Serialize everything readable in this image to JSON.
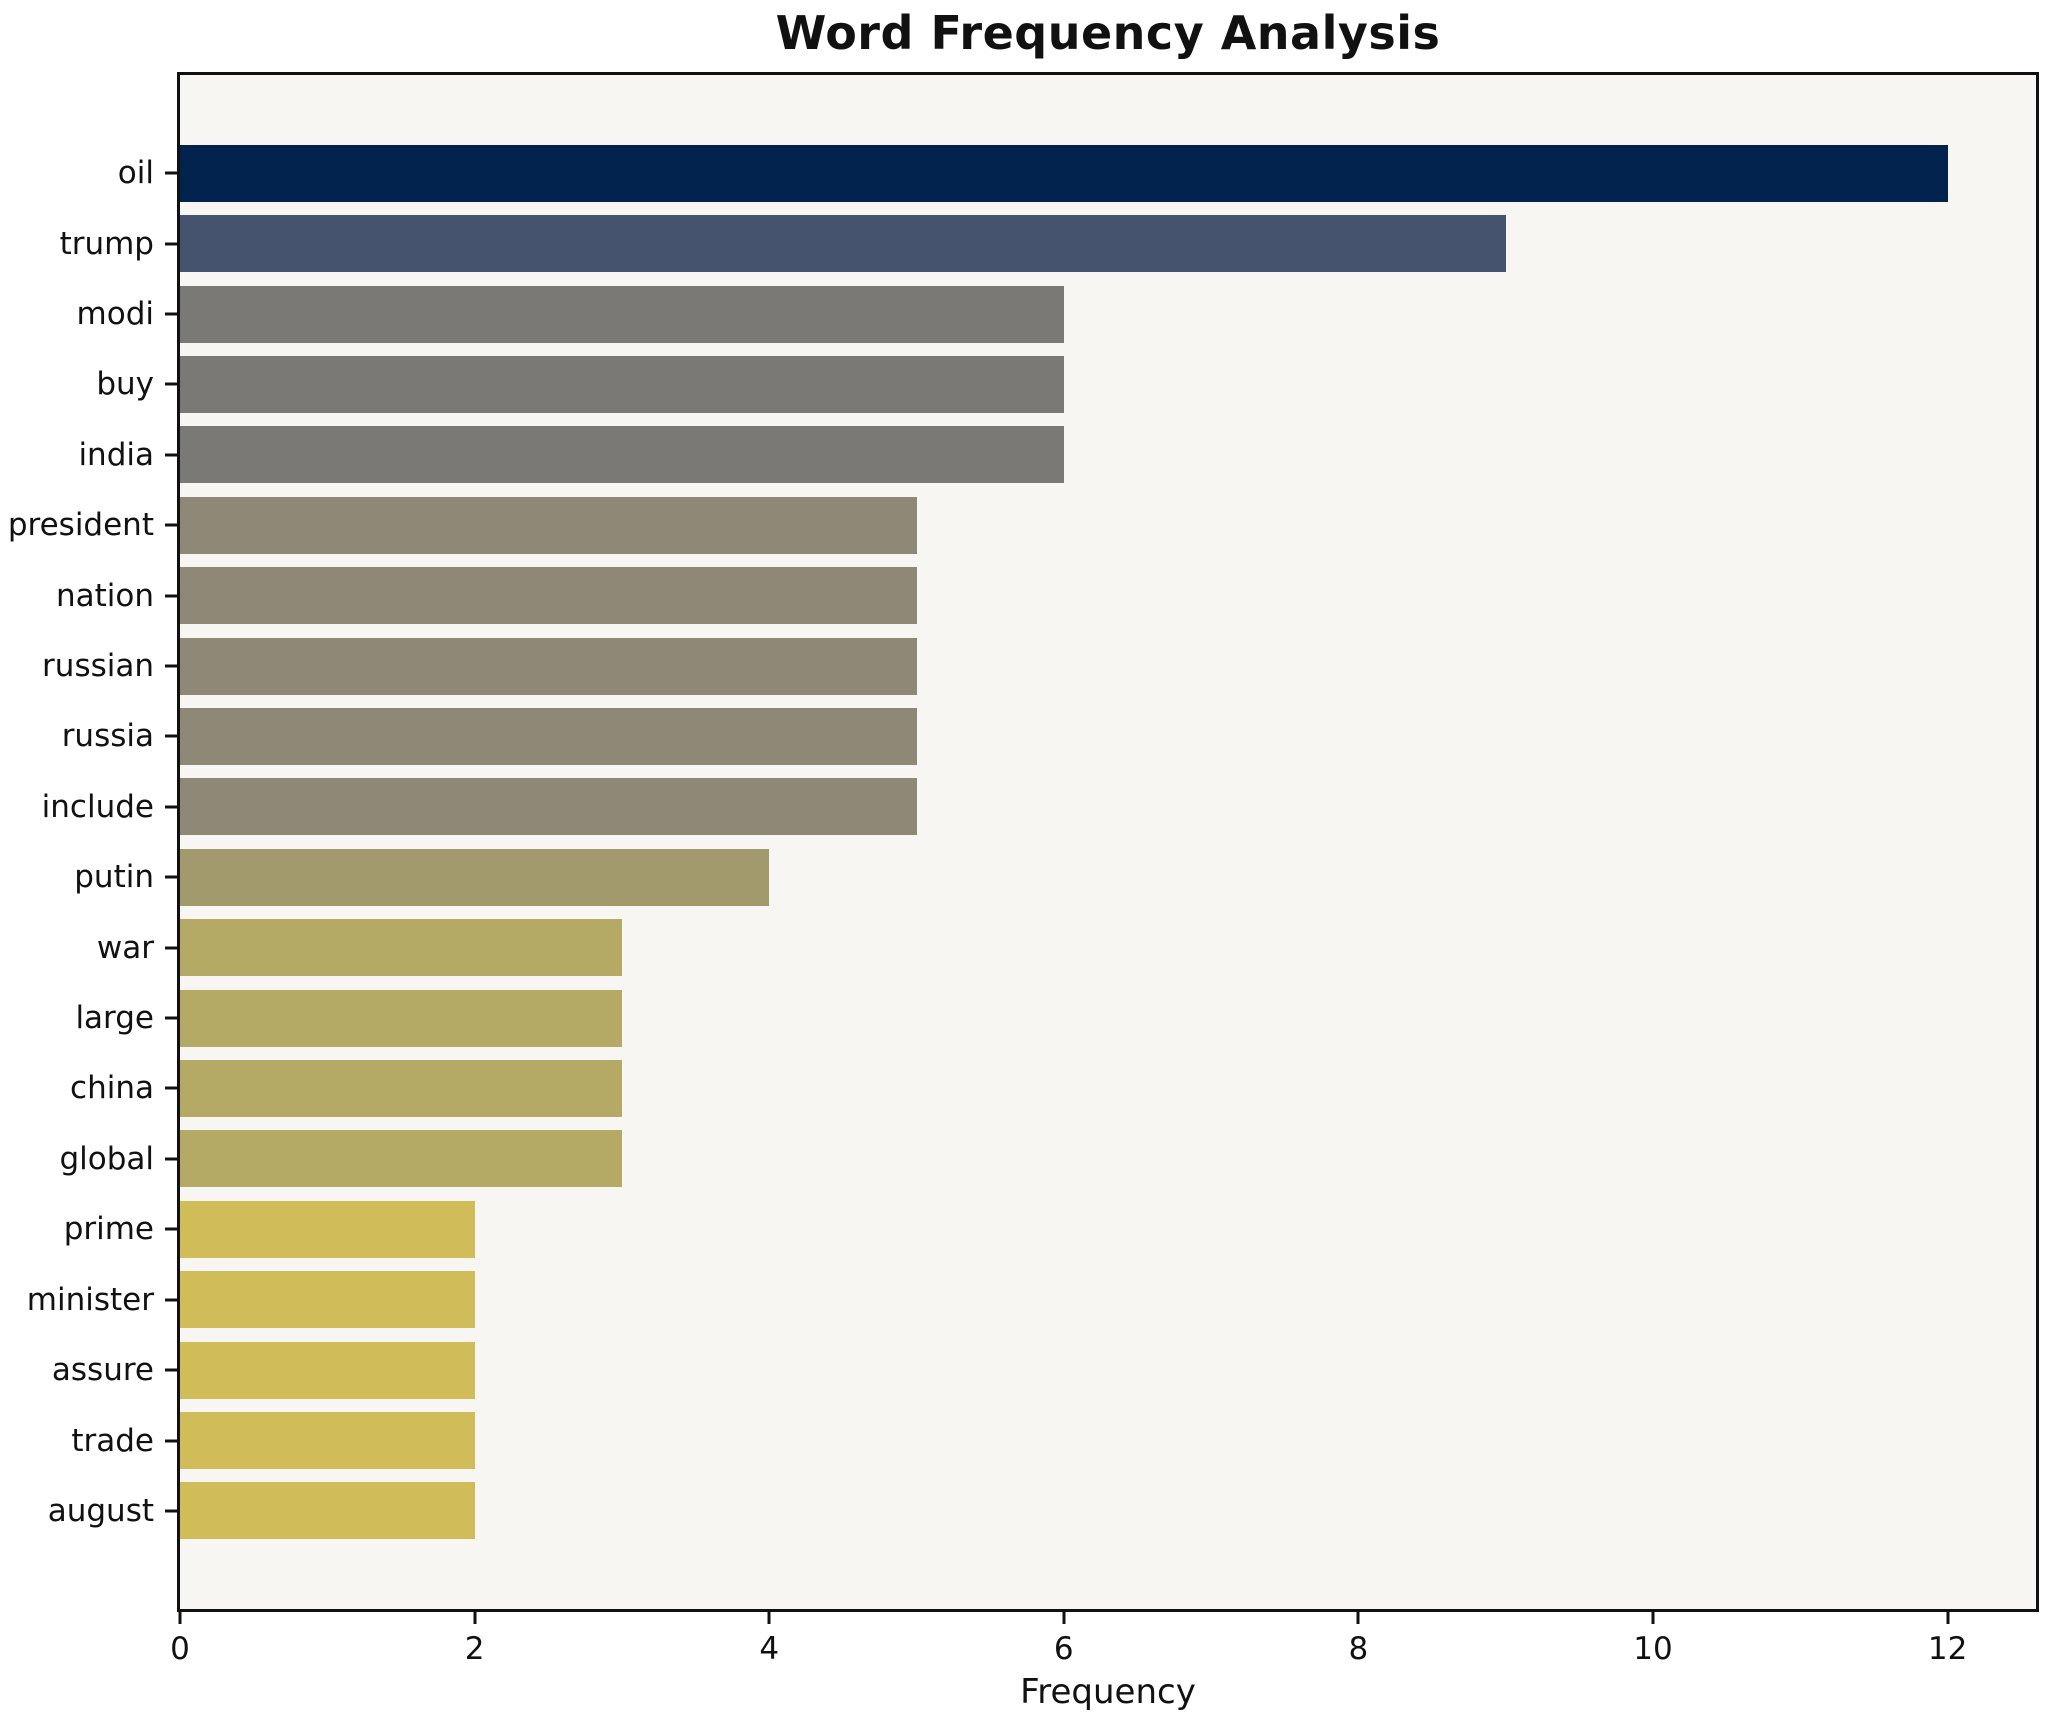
{
  "chart_data": {
    "type": "bar",
    "orientation": "horizontal",
    "title": "Word Frequency Analysis",
    "xlabel": "Frequency",
    "ylabel": "",
    "categories": [
      "oil",
      "trump",
      "modi",
      "buy",
      "india",
      "president",
      "nation",
      "russian",
      "russia",
      "include",
      "putin",
      "war",
      "large",
      "china",
      "global",
      "prime",
      "minister",
      "assure",
      "trade",
      "august"
    ],
    "values": [
      12,
      9,
      6,
      6,
      6,
      5,
      5,
      5,
      5,
      5,
      4,
      3,
      3,
      3,
      3,
      2,
      2,
      2,
      2,
      2
    ],
    "bar_colors": [
      "#02234d",
      "#46536f",
      "#7a7975",
      "#7a7975",
      "#7a7975",
      "#8e8876",
      "#8e8876",
      "#8e8876",
      "#8e8876",
      "#8e8876",
      "#a29a6d",
      "#b4aa66",
      "#b4aa66",
      "#b4aa66",
      "#b4aa66",
      "#d0bd5a",
      "#d0bd5a",
      "#d0bd5a",
      "#d0bd5a",
      "#d0bd5a"
    ],
    "xlim": [
      0,
      12.6
    ],
    "x_ticks": [
      0,
      2,
      4,
      6,
      8,
      10,
      12
    ],
    "grid": "off",
    "legend": "none",
    "plot_background": "#f7f6f3",
    "figure_background": "#ffffff",
    "spine_color": "#111111"
  }
}
